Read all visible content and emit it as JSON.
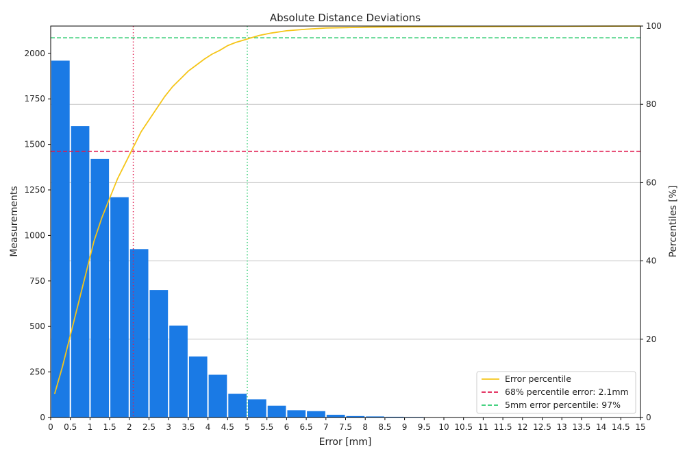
{
  "chart_data": {
    "type": "bar",
    "title": "Absolute Distance Deviations",
    "xlabel": "Error [mm]",
    "ylabel": "Measurements",
    "y2label": "Percentiles [%]",
    "xlim": [
      0,
      15
    ],
    "ylim": [
      0,
      2150
    ],
    "y2lim": [
      0,
      100
    ],
    "x_ticks": [
      "0",
      "0.5",
      "1",
      "1.5",
      "2",
      "2.5",
      "3",
      "3.5",
      "4",
      "4.5",
      "5",
      "5.5",
      "6",
      "6.5",
      "7",
      "7.5",
      "8",
      "8.5",
      "9",
      "9.5",
      "10",
      "10.5",
      "11",
      "11.5",
      "12",
      "12.5",
      "13",
      "13.5",
      "14",
      "14.5",
      "15"
    ],
    "y_ticks": [
      "0",
      "250",
      "500",
      "750",
      "1000",
      "1250",
      "1500",
      "1750",
      "2000"
    ],
    "y2_ticks": [
      "0",
      "20",
      "40",
      "60",
      "80",
      "100"
    ],
    "grid": true,
    "legend_position": "bottom-right",
    "colors": {
      "bars": "#1a7ae5",
      "percentile": "#f5c518",
      "line68": "#e0184d",
      "line5mm": "#2ecc71"
    },
    "bars": {
      "bin_width": 0.5,
      "bin_starts": [
        0,
        0.5,
        1,
        1.5,
        2,
        2.5,
        3,
        3.5,
        4,
        4.5,
        5,
        5.5,
        6,
        6.5,
        7,
        7.5,
        8,
        8.5,
        9
      ],
      "values": [
        1960,
        1600,
        1420,
        1210,
        925,
        700,
        505,
        335,
        235,
        130,
        100,
        65,
        40,
        35,
        15,
        8,
        6,
        4,
        3
      ]
    },
    "series": [
      {
        "name": "Error percentile",
        "axis": "right",
        "x": [
          0.1,
          0.3,
          0.5,
          0.7,
          0.9,
          1.1,
          1.3,
          1.5,
          1.7,
          1.9,
          2.1,
          2.3,
          2.5,
          2.7,
          2.9,
          3.1,
          3.3,
          3.5,
          3.7,
          3.9,
          4.1,
          4.3,
          4.5,
          4.7,
          4.9,
          5.1,
          5.3,
          5.6,
          6.0,
          6.5,
          7.0,
          8.0,
          9.0,
          10.0,
          12.0,
          15.0
        ],
        "values": [
          6,
          13,
          21,
          29,
          37,
          45,
          51,
          56,
          61,
          65,
          69,
          73,
          76,
          79,
          82,
          84.5,
          86.5,
          88.5,
          90,
          91.5,
          92.8,
          93.8,
          95,
          95.8,
          96.4,
          97,
          97.6,
          98.2,
          98.8,
          99.2,
          99.5,
          99.7,
          99.8,
          99.85,
          99.9,
          100
        ]
      },
      {
        "name": "68% percentile error: 2.1mm",
        "axis": "right",
        "horizontal_at": 68,
        "vertical_at": 2.1
      },
      {
        "name": "5mm error percentile: 97%",
        "axis": "right",
        "horizontal_at": 97,
        "vertical_at": 5
      }
    ]
  }
}
